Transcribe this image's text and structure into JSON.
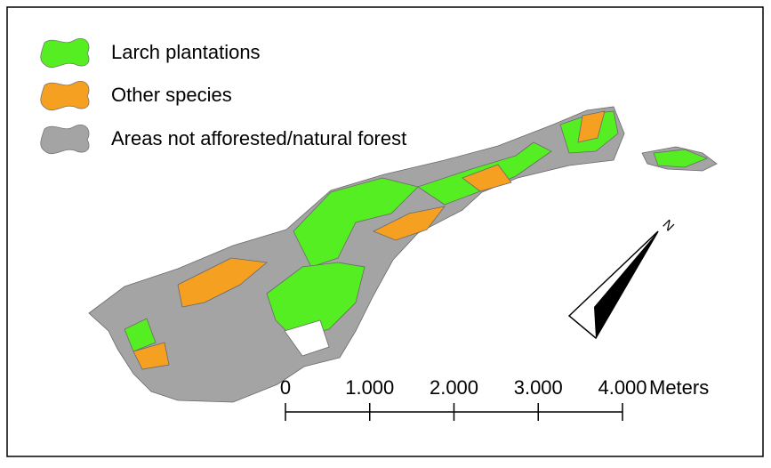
{
  "legend": {
    "items": [
      {
        "label": "Larch plantations",
        "color": "#55ee22"
      },
      {
        "label": "Other species",
        "color": "#f5a020"
      },
      {
        "label": "Areas not afforested/natural forest",
        "color": "#a4a4a4"
      }
    ]
  },
  "north_arrow": {
    "label": "N"
  },
  "scale_bar": {
    "labels": [
      "0",
      "1.000",
      "2.000",
      "3.000",
      "4.000"
    ],
    "unit": "Meters"
  }
}
